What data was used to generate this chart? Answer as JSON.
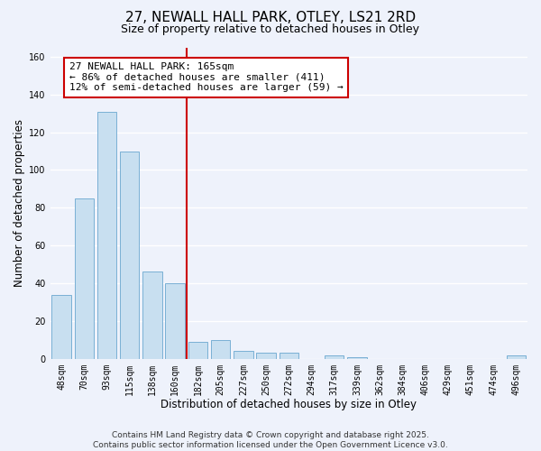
{
  "title": "27, NEWALL HALL PARK, OTLEY, LS21 2RD",
  "subtitle": "Size of property relative to detached houses in Otley",
  "xlabel": "Distribution of detached houses by size in Otley",
  "ylabel": "Number of detached properties",
  "bar_labels": [
    "48sqm",
    "70sqm",
    "93sqm",
    "115sqm",
    "138sqm",
    "160sqm",
    "182sqm",
    "205sqm",
    "227sqm",
    "250sqm",
    "272sqm",
    "294sqm",
    "317sqm",
    "339sqm",
    "362sqm",
    "384sqm",
    "406sqm",
    "429sqm",
    "451sqm",
    "474sqm",
    "496sqm"
  ],
  "bar_values": [
    34,
    85,
    131,
    110,
    46,
    40,
    9,
    10,
    4,
    3,
    3,
    0,
    2,
    1,
    0,
    0,
    0,
    0,
    0,
    0,
    2
  ],
  "bar_color": "#c8dff0",
  "bar_edgecolor": "#7ab0d4",
  "vline_x_index": 5,
  "vline_color": "#cc0000",
  "annotation_lines": [
    "27 NEWALL HALL PARK: 165sqm",
    "← 86% of detached houses are smaller (411)",
    "12% of semi-detached houses are larger (59) →"
  ],
  "ylim": [
    0,
    165
  ],
  "yticks": [
    0,
    20,
    40,
    60,
    80,
    100,
    120,
    140,
    160
  ],
  "footer_line1": "Contains HM Land Registry data © Crown copyright and database right 2025.",
  "footer_line2": "Contains public sector information licensed under the Open Government Licence v3.0.",
  "background_color": "#eef2fb",
  "grid_color": "#ffffff",
  "title_fontsize": 11,
  "subtitle_fontsize": 9,
  "axis_label_fontsize": 8.5,
  "tick_fontsize": 7,
  "annotation_fontsize": 8,
  "footer_fontsize": 6.5
}
